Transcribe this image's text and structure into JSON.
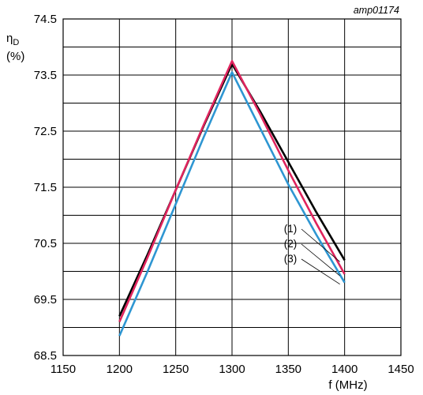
{
  "chart_data": {
    "type": "line",
    "title": "",
    "figure_id": "amp01174",
    "ylabel_symbol": "η",
    "ylabel_subscript": "D",
    "ylabel_unit": "(%)",
    "xlabel": "f (MHz)",
    "xlim": [
      1150,
      1450
    ],
    "ylim": [
      68.5,
      74.5
    ],
    "x_ticks": [
      1150,
      1200,
      1250,
      1300,
      1350,
      1400,
      1450
    ],
    "y_ticks": [
      68.5,
      69.5,
      70.5,
      71.5,
      72.5,
      73.5,
      74.5
    ],
    "grid": true,
    "legend": "annotations near curve ends at right",
    "series": [
      {
        "name": "(1)",
        "color": "#000000",
        "points": [
          [
            1200,
            69.2
          ],
          [
            1225,
            70.3
          ],
          [
            1250,
            71.45
          ],
          [
            1275,
            72.6
          ],
          [
            1300,
            73.7
          ],
          [
            1325,
            72.85
          ],
          [
            1350,
            71.95
          ],
          [
            1375,
            71.05
          ],
          [
            1400,
            70.2
          ]
        ]
      },
      {
        "name": "(2)",
        "color": "#e0245e",
        "points": [
          [
            1200,
            69.1
          ],
          [
            1225,
            70.25
          ],
          [
            1250,
            71.45
          ],
          [
            1275,
            72.62
          ],
          [
            1300,
            73.75
          ],
          [
            1325,
            72.8
          ],
          [
            1350,
            71.8
          ],
          [
            1375,
            70.85
          ],
          [
            1400,
            69.95
          ]
        ]
      },
      {
        "name": "(3)",
        "color": "#2e96d2",
        "points": [
          [
            1200,
            68.85
          ],
          [
            1225,
            70.0
          ],
          [
            1250,
            71.2
          ],
          [
            1275,
            72.4
          ],
          [
            1300,
            73.55
          ],
          [
            1325,
            72.55
          ],
          [
            1350,
            71.55
          ],
          [
            1375,
            70.65
          ],
          [
            1400,
            69.8
          ]
        ]
      }
    ]
  }
}
